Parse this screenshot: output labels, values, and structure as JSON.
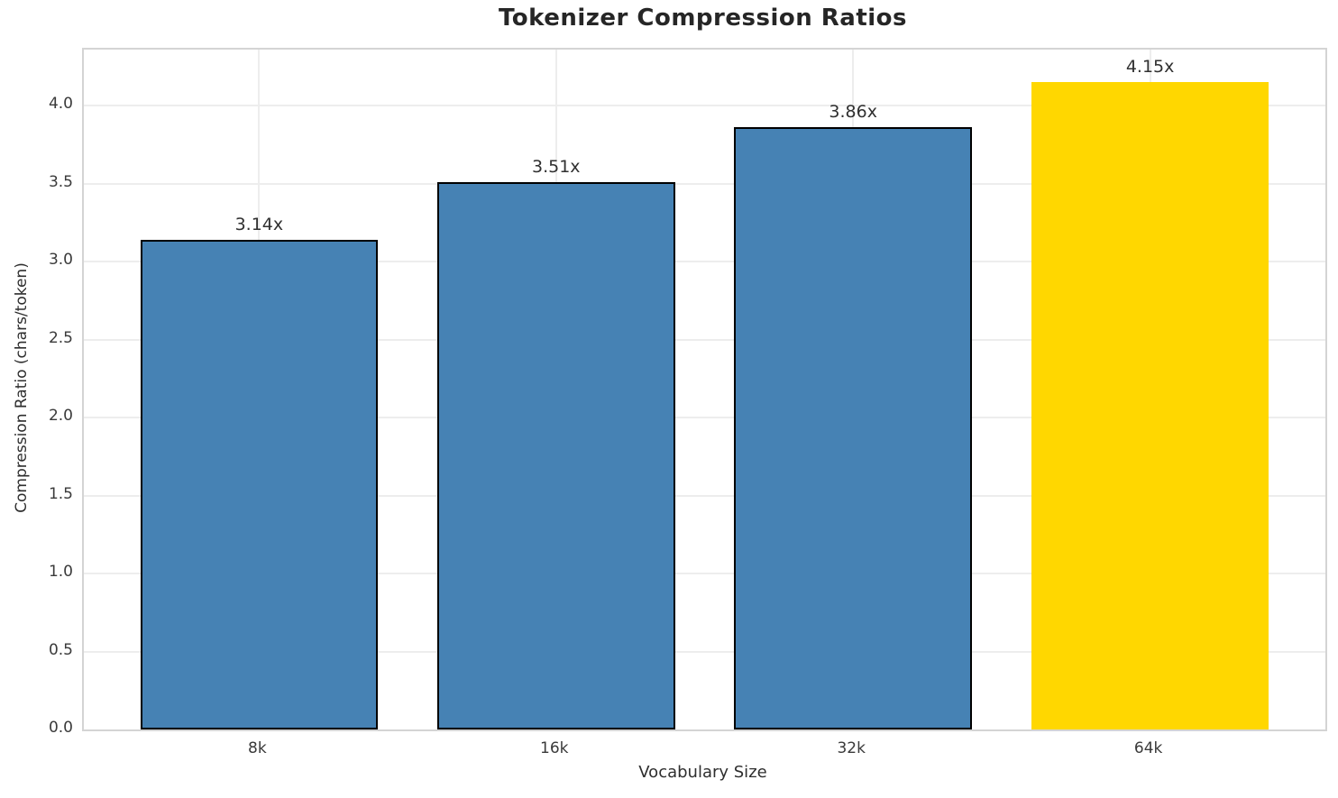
{
  "chart_data": {
    "type": "bar",
    "title": "Tokenizer Compression Ratios",
    "xlabel": "Vocabulary Size",
    "ylabel": "Compression Ratio (chars/token)",
    "categories": [
      "8k",
      "16k",
      "32k",
      "64k"
    ],
    "values": [
      3.14,
      3.51,
      3.86,
      4.15
    ],
    "bar_labels": [
      "3.14x",
      "3.51x",
      "3.86x",
      "4.15x"
    ],
    "bar_colors": [
      "#4682B4",
      "#4682B4",
      "#4682B4",
      "#FFD700"
    ],
    "bar_edge_colors": [
      "#000000",
      "#000000",
      "#000000",
      "none"
    ],
    "ylim": [
      0,
      4.36
    ],
    "yticks": [
      0.0,
      0.5,
      1.0,
      1.5,
      2.0,
      2.5,
      3.0,
      3.5,
      4.0
    ],
    "ytick_labels": [
      "0.0",
      "0.5",
      "1.0",
      "1.5",
      "2.0",
      "2.5",
      "3.0",
      "3.5",
      "4.0"
    ],
    "grid": true,
    "legend_position": "none"
  },
  "colors": {
    "bar_blue": "#4682B4",
    "bar_gold": "#FFD700",
    "bar_edge": "#000000",
    "gridline": "#ededed",
    "spine": "#d4d4d4",
    "title_text": "#262626",
    "tick_text": "#3a3a3a",
    "background": "#ffffff"
  }
}
